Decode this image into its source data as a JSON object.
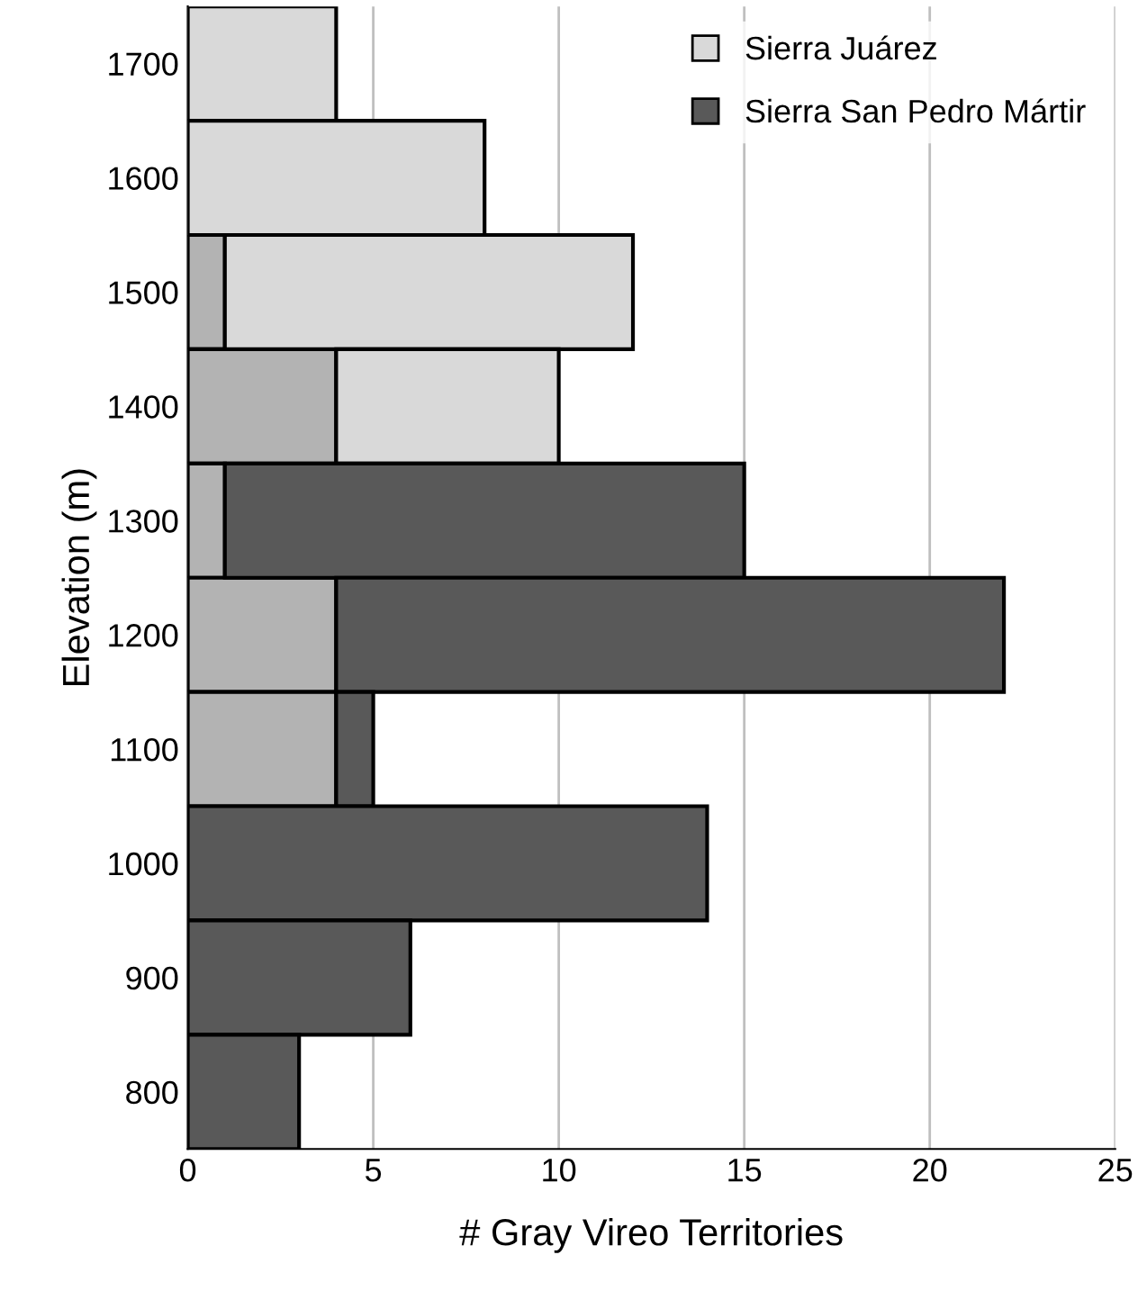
{
  "chart_data": {
    "type": "bar",
    "orientation": "horizontal",
    "stacked": true,
    "xlabel": "# Gray Vireo Territories",
    "ylabel": "Elevation (m)",
    "categories": [
      "1700",
      "1600",
      "1500",
      "1400",
      "1300",
      "1200",
      "1100",
      "1000",
      "900",
      "800"
    ],
    "series": [
      {
        "color": "#b3b3b3",
        "values": [
          null,
          null,
          1,
          4,
          1,
          4,
          4,
          null,
          null,
          null
        ]
      },
      {
        "name": "Sierra Juárez",
        "color": "#d9d9d9",
        "values": [
          4,
          8,
          11,
          6,
          null,
          null,
          null,
          null,
          null,
          null
        ]
      },
      {
        "name": "Sierra San Pedro Mártir",
        "color": "#595959",
        "values": [
          null,
          null,
          null,
          null,
          14,
          18,
          1,
          14,
          6,
          3
        ]
      }
    ],
    "xlim": [
      0,
      25
    ],
    "xticks": [
      0,
      5,
      10,
      15,
      20,
      25
    ],
    "grid": "x",
    "legend": "top right"
  }
}
